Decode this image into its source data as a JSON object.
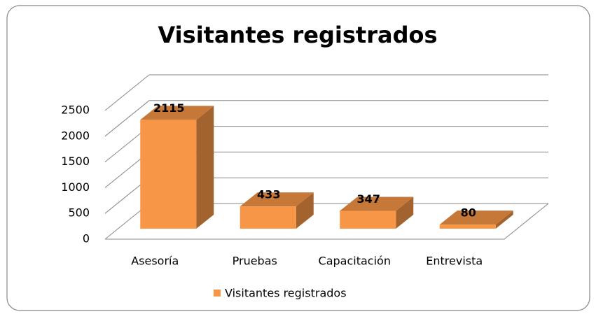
{
  "chart_data": {
    "type": "bar",
    "title": "Visitantes registrados",
    "categories": [
      "Asesoría",
      "Pruebas",
      "Capacitación",
      "Entrevista"
    ],
    "series": [
      {
        "name": "Visitantes registrados",
        "color": "#f79646",
        "values": [
          2115,
          433,
          347,
          80
        ]
      }
    ],
    "ylim": [
      0,
      2500
    ],
    "yticks": [
      0,
      500,
      1000,
      1500,
      2000,
      2500
    ],
    "grid": true,
    "legend": "bottom"
  }
}
